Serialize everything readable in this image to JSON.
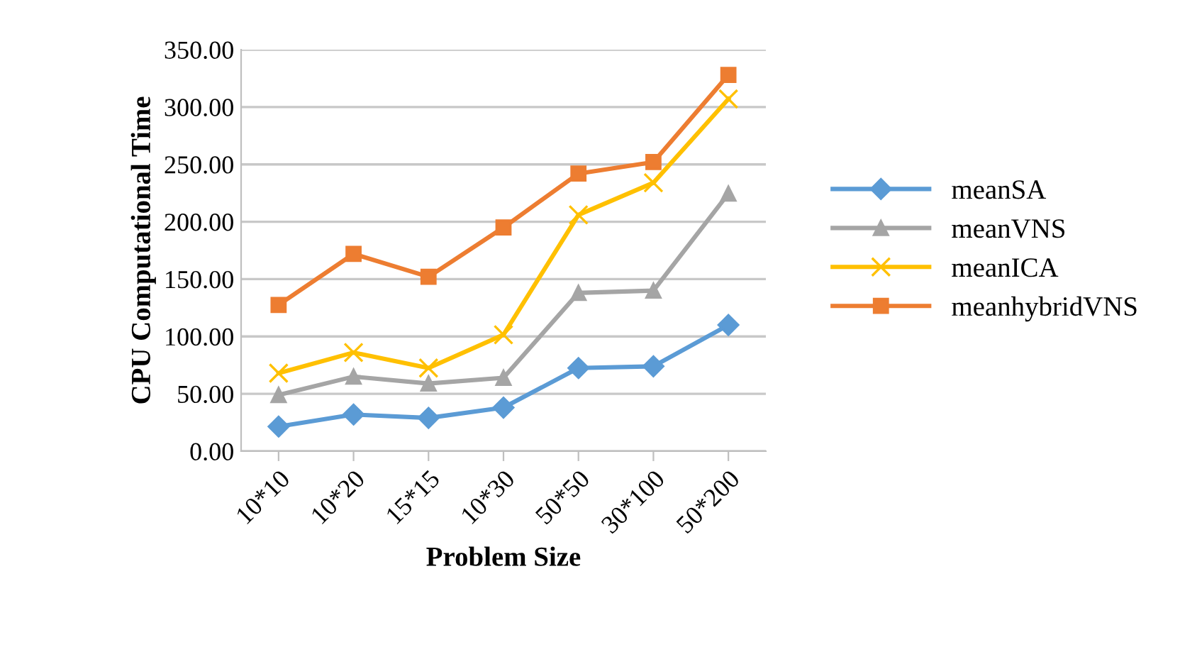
{
  "chart_data": {
    "type": "line",
    "xlabel": "Problem Size",
    "ylabel": "CPU Computational Time",
    "categories": [
      "10*10",
      "10*20",
      "15*15",
      "10*30",
      "50*50",
      "30*100",
      "50*200"
    ],
    "series": [
      {
        "name": "meanSA",
        "color": "#5b9bd5",
        "marker": "diamond",
        "values": [
          21.5,
          32,
          29,
          38,
          72.5,
          74,
          110
        ]
      },
      {
        "name": "meanVNS",
        "color": "#a5a5a5",
        "marker": "triangle",
        "values": [
          49,
          65,
          59,
          64,
          138,
          140,
          224.5
        ]
      },
      {
        "name": "meanICA",
        "color": "#ffc000",
        "marker": "cross",
        "values": [
          68,
          86,
          72.5,
          101.5,
          206,
          234,
          307
        ]
      },
      {
        "name": "meanhybridVNS",
        "color": "#ed7d31",
        "marker": "square",
        "values": [
          127.5,
          172,
          152,
          195,
          242,
          252,
          328
        ]
      }
    ],
    "ylim": [
      0,
      350
    ],
    "yticks": [
      {
        "value": 0,
        "label": "0.00"
      },
      {
        "value": 50,
        "label": "50.00"
      },
      {
        "value": 100,
        "label": "100.00"
      },
      {
        "value": 150,
        "label": "150.00"
      },
      {
        "value": 200,
        "label": "200.00"
      },
      {
        "value": 250,
        "label": "250.00"
      },
      {
        "value": 300,
        "label": "300.00"
      },
      {
        "value": 350,
        "label": "350.00"
      }
    ],
    "grid": "y",
    "legend": "right",
    "line_style": "solid"
  }
}
